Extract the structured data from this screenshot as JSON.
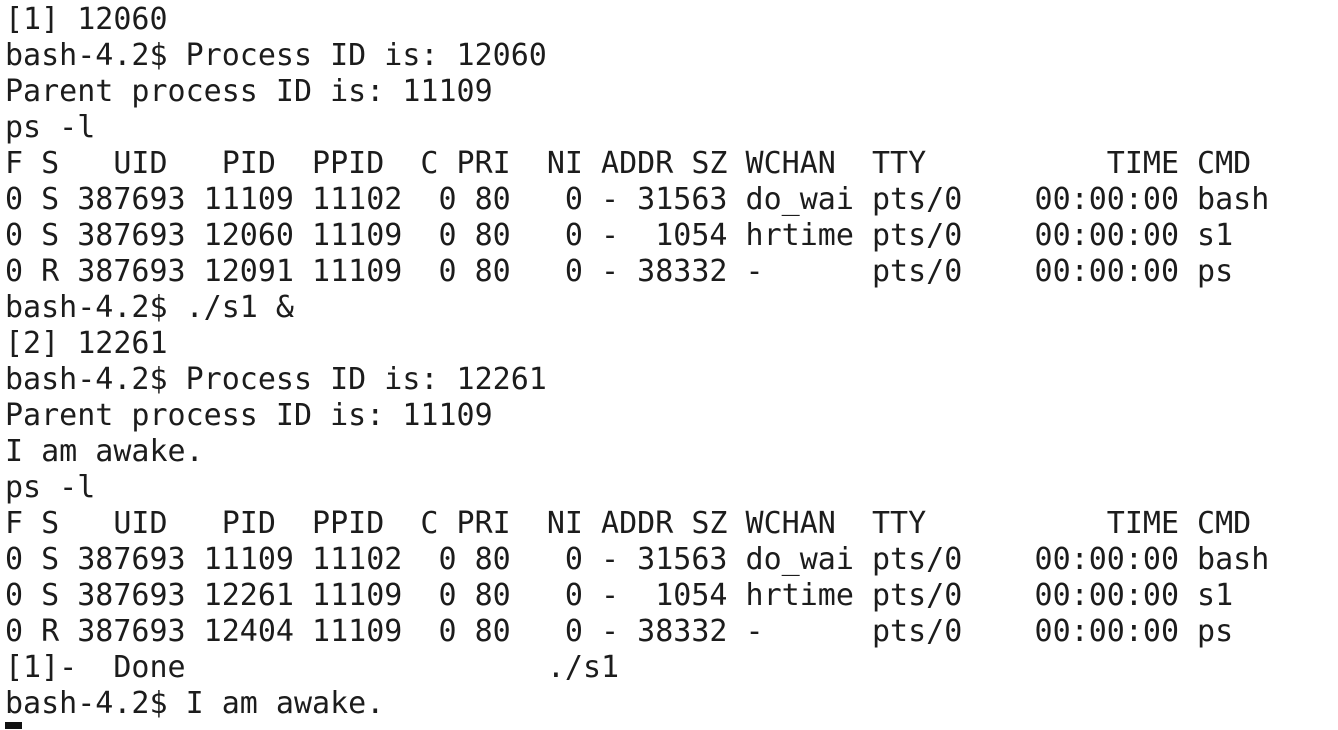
{
  "terminal": {
    "lines": [
      "[1] 12060",
      "bash-4.2$ Process ID is: 12060",
      "Parent process ID is: 11109",
      "ps -l",
      "F S   UID   PID  PPID  C PRI  NI ADDR SZ WCHAN  TTY          TIME CMD",
      "0 S 387693 11109 11102  0 80   0 - 31563 do_wai pts/0    00:00:00 bash",
      "0 S 387693 12060 11109  0 80   0 -  1054 hrtime pts/0    00:00:00 s1",
      "0 R 387693 12091 11109  0 80   0 - 38332 -      pts/0    00:00:00 ps",
      "bash-4.2$ ./s1 &",
      "[2] 12261",
      "bash-4.2$ Process ID is: 12261",
      "Parent process ID is: 11109",
      "I am awake.",
      "ps -l",
      "F S   UID   PID  PPID  C PRI  NI ADDR SZ WCHAN  TTY          TIME CMD",
      "0 S 387693 11109 11102  0 80   0 - 31563 do_wai pts/0    00:00:00 bash",
      "0 S 387693 12261 11109  0 80   0 -  1054 hrtime pts/0    00:00:00 s1",
      "0 R 387693 12404 11109  0 80   0 - 38332 -      pts/0    00:00:00 ps",
      "[1]-  Done                    ./s1",
      "bash-4.2$ I am awake."
    ]
  }
}
